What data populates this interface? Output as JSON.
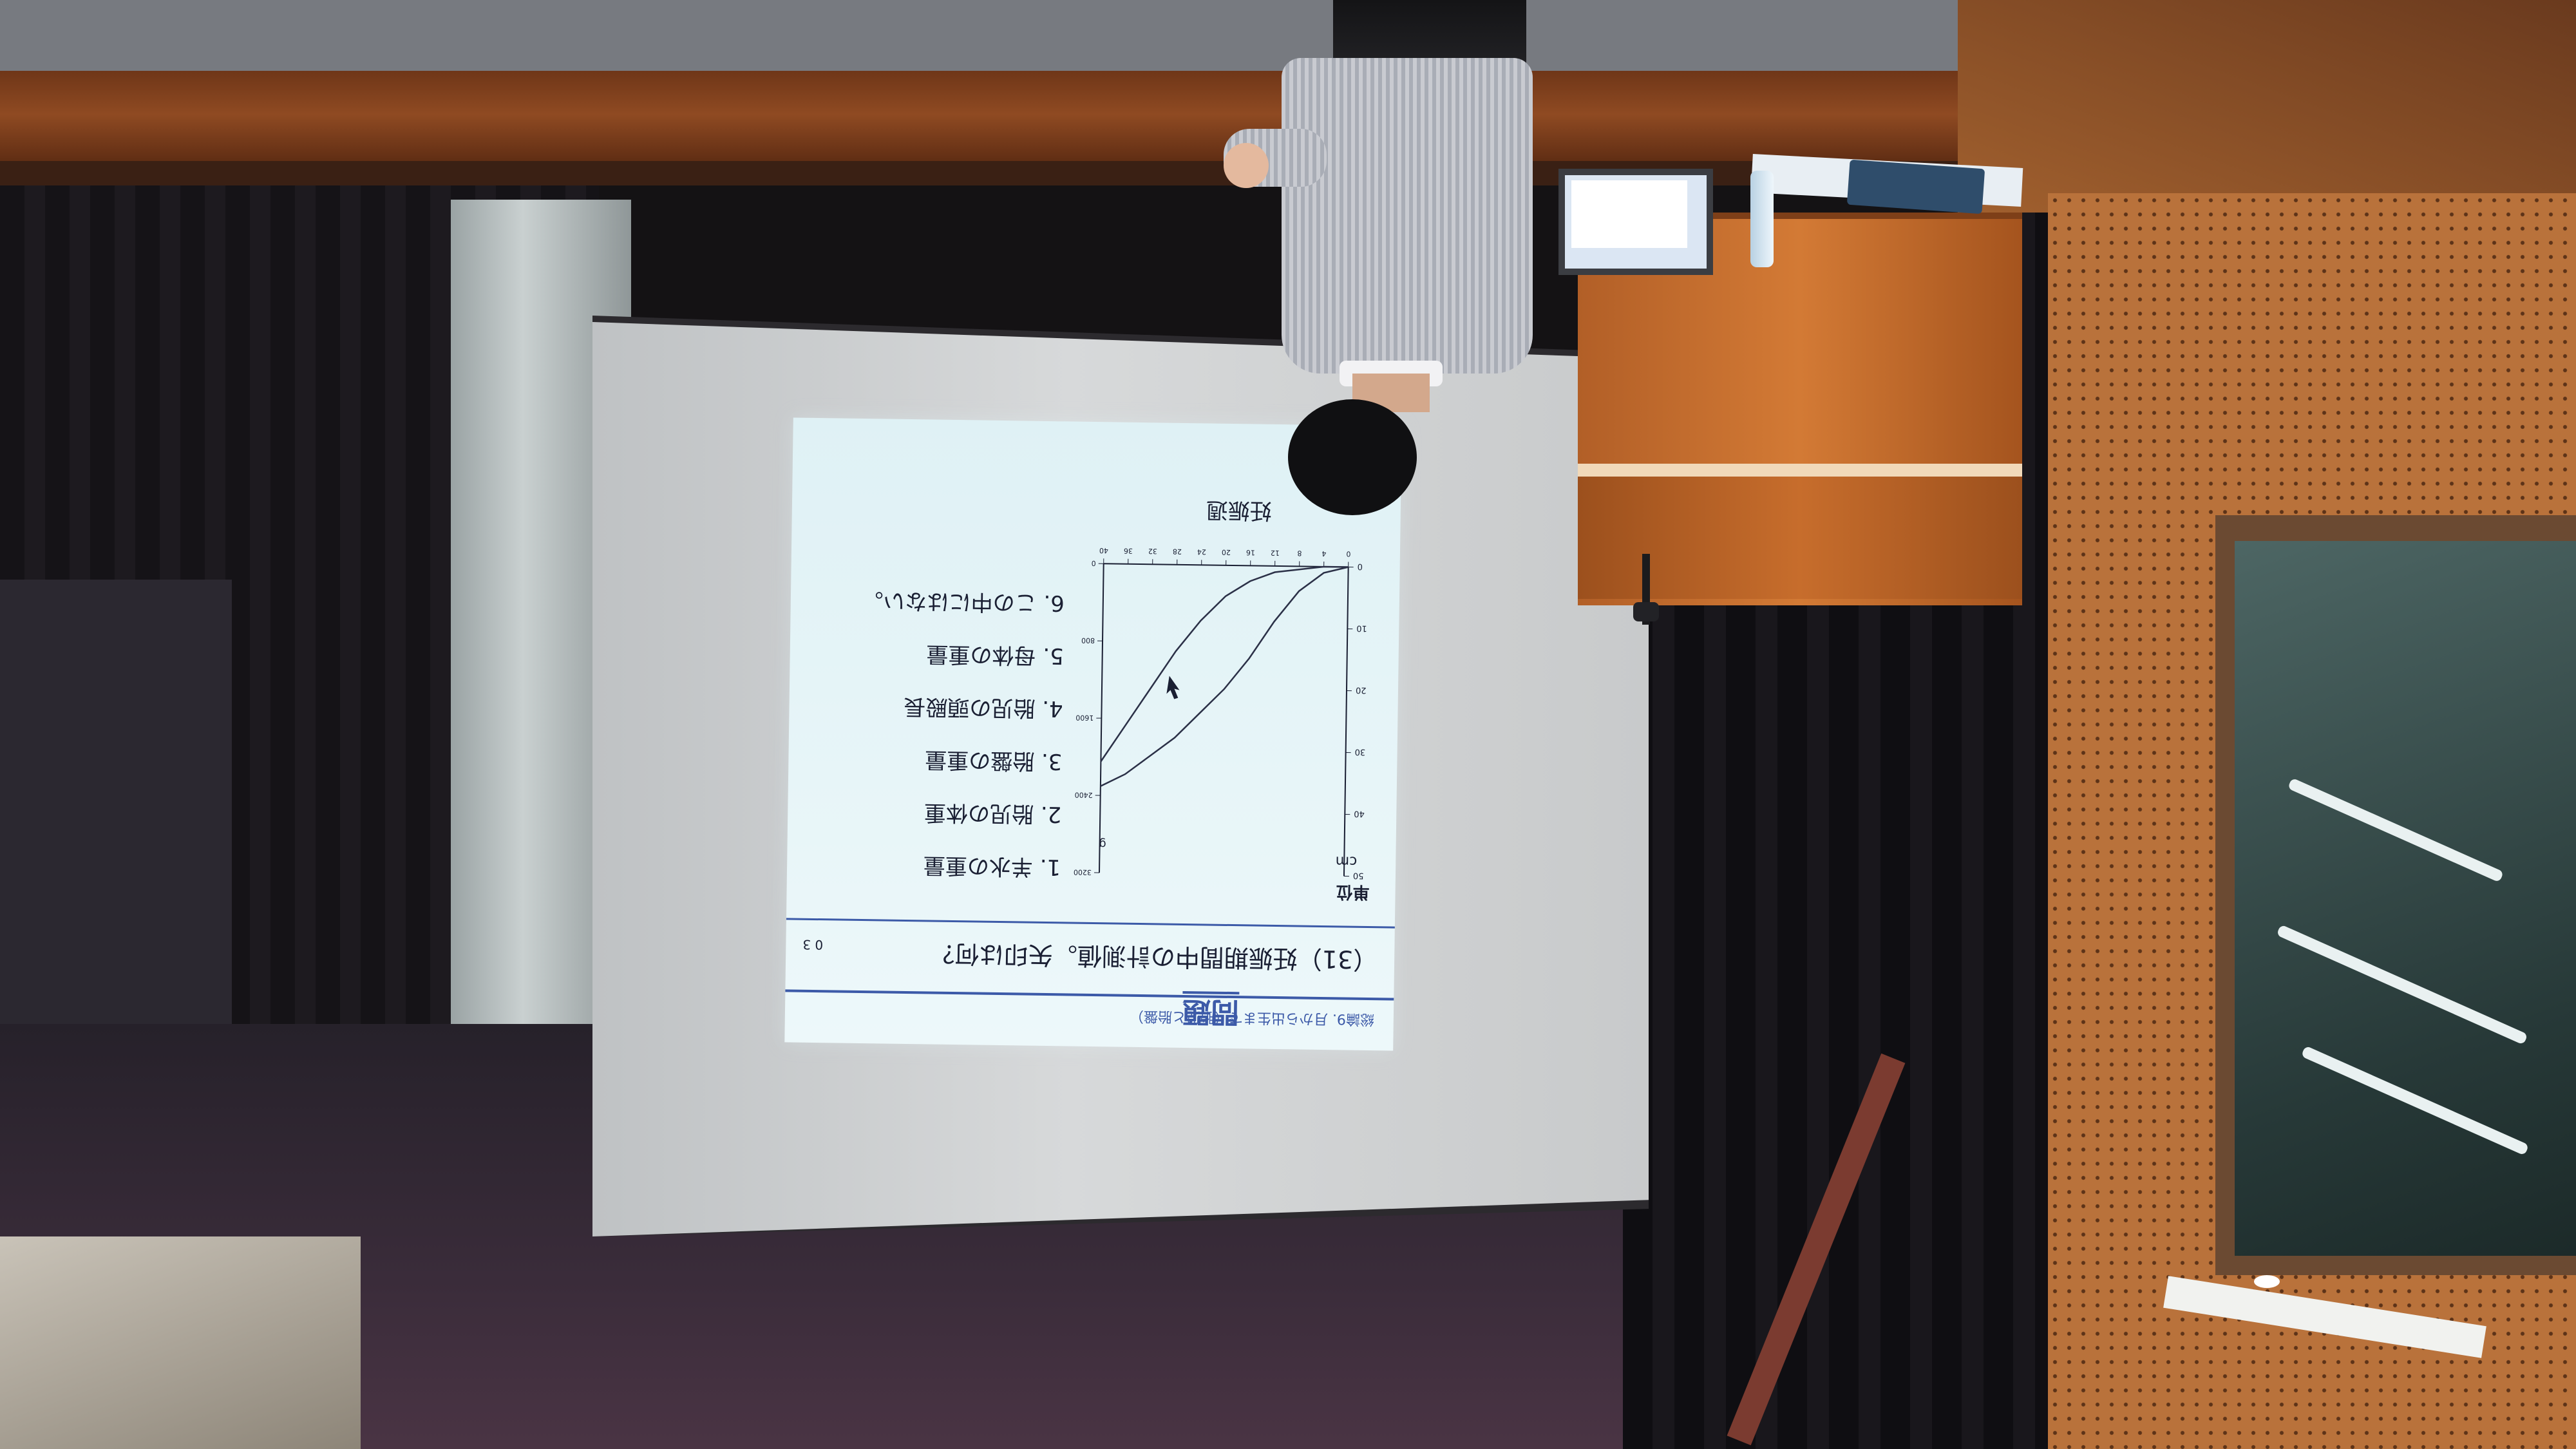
{
  "slide": {
    "header": "総論9.  月から出生まで（胎児と胎盤）",
    "title_badge": "問題",
    "score": "0 3",
    "question": "（31）妊娠期間中の計測値。矢印は何？",
    "options": [
      "1. 羊水の重量",
      "2. 胎児の体重",
      "3. 胎盤の重量",
      "4. 胎児の頭殿長",
      "5. 母体の重量",
      "6. この中にはない。"
    ],
    "chart_units_label": "単位",
    "chart_unit_cm": "cm",
    "chart_unit_g": "g",
    "chart_xlabel": "妊娠週"
  },
  "chart_data": {
    "type": "line",
    "x": [
      0,
      4,
      8,
      12,
      16,
      20,
      24,
      28,
      32,
      36,
      40
    ],
    "xlim": [
      0,
      40
    ],
    "ylim_left": [
      0,
      50
    ],
    "ylim_right": [
      0,
      3200
    ],
    "left_ticks": [
      0,
      10,
      20,
      30,
      40,
      50
    ],
    "right_ticks": [
      0,
      800,
      1600,
      2400,
      3200
    ],
    "series": [
      {
        "values": [
          0,
          1,
          4,
          9,
          15,
          20,
          24,
          28,
          31,
          34,
          36
        ]
      },
      {
        "values": [
          0,
          0,
          0.5,
          1,
          2.5,
          5,
          9,
          14,
          20,
          26,
          32
        ]
      }
    ],
    "arrow_at": {
      "x": 29,
      "y": 18
    }
  },
  "colors": {
    "slide_accent": "#3c5aa8",
    "slide_bg": "#e6f5f8",
    "podium": "#c96f2e",
    "wall": "#b9723b"
  }
}
